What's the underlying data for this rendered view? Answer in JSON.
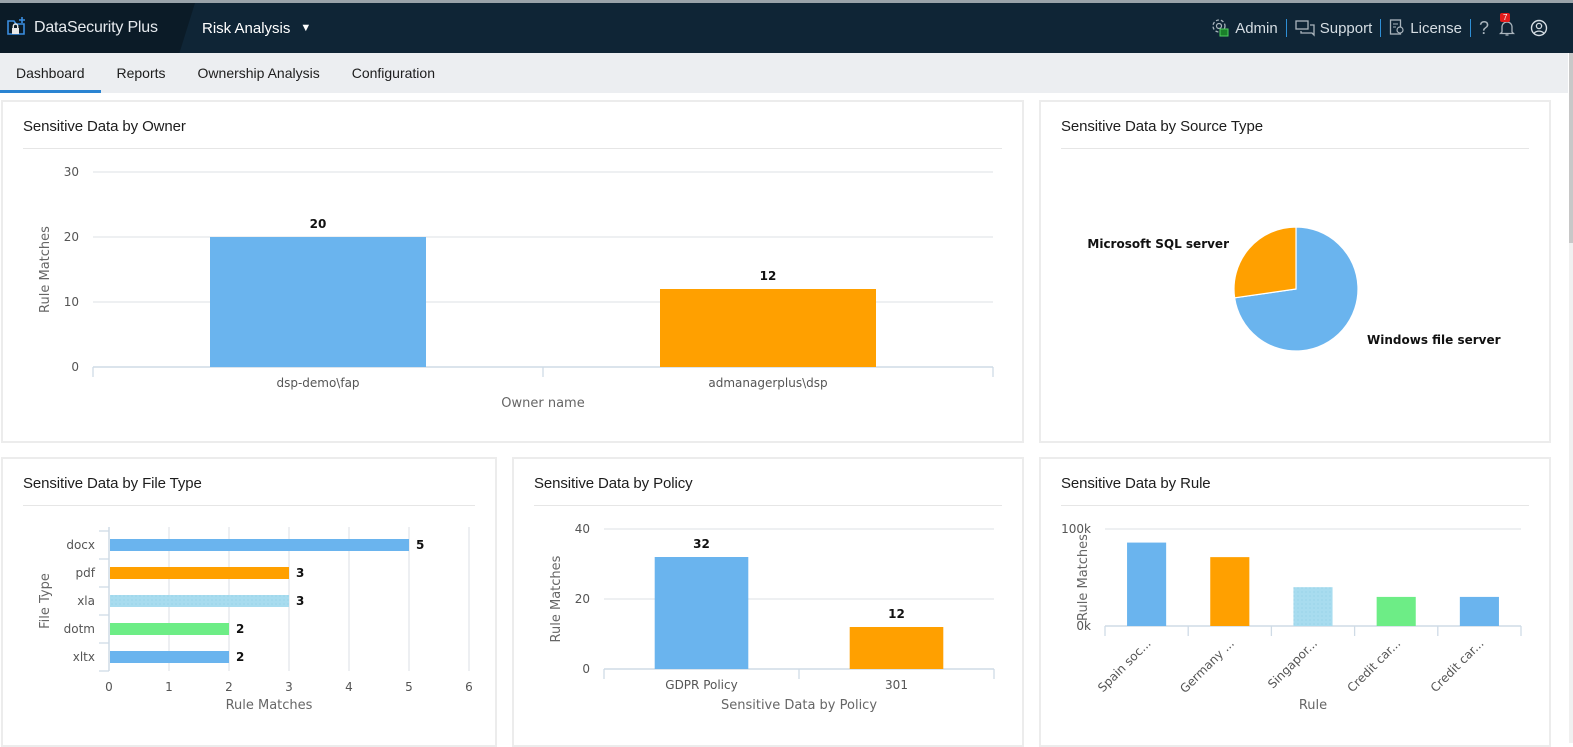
{
  "header": {
    "brand": "DataSecurity Plus",
    "module": "Risk Analysis",
    "links": [
      {
        "label": "Admin",
        "icon": "admin-gear-icon"
      },
      {
        "label": "Support",
        "icon": "chat-icon"
      },
      {
        "label": "License",
        "icon": "license-icon"
      }
    ],
    "help_icon": "?",
    "notification_count": "7"
  },
  "tabs": [
    {
      "label": "Dashboard",
      "active": true
    },
    {
      "label": "Reports",
      "active": false
    },
    {
      "label": "Ownership Analysis",
      "active": false
    },
    {
      "label": "Configuration",
      "active": false
    }
  ],
  "colors": {
    "blue": "#6ab4ee",
    "orange": "#ffa000",
    "lightblue": "#a8dcef",
    "green": "#6ded86"
  },
  "panels": {
    "owner": {
      "title": "Sensitive Data by Owner"
    },
    "source": {
      "title": "Sensitive Data by Source Type"
    },
    "filetype": {
      "title": "Sensitive Data by File Type"
    },
    "policy": {
      "title": "Sensitive Data by Policy"
    },
    "rule": {
      "title": "Sensitive Data by Rule"
    }
  },
  "chart_data": [
    {
      "id": "owner",
      "type": "bar",
      "title": "Sensitive Data by Owner",
      "categories": [
        "dsp-demo\\fap",
        "admanagerplus\\dsp"
      ],
      "values": [
        20,
        12
      ],
      "colors": [
        "#6ab4ee",
        "#ffa000"
      ],
      "xlabel": "Owner name",
      "ylabel": "Rule Matches",
      "ylim": [
        0,
        30
      ],
      "yticks": [
        "0",
        "10",
        "20",
        "30"
      ],
      "grid": true
    },
    {
      "id": "source",
      "type": "pie",
      "title": "Sensitive Data by Source Type",
      "labels": [
        "Windows file server",
        "Microsoft SQL server"
      ],
      "values": [
        32,
        12
      ],
      "colors": [
        "#6ab4ee",
        "#ffa000"
      ]
    },
    {
      "id": "filetype",
      "type": "bar",
      "orientation": "horizontal",
      "title": "Sensitive Data by File Type",
      "categories": [
        "docx",
        "pdf",
        "xla",
        "dotm",
        "xltx"
      ],
      "values": [
        5,
        3,
        3,
        2,
        2
      ],
      "colors": [
        "#6ab4ee",
        "#ffa000",
        "#a8dcef",
        "#6ded86",
        "#6ab4ee"
      ],
      "xlabel": "Rule Matches",
      "ylabel": "File Type",
      "xlim": [
        0,
        6
      ],
      "xticks": [
        "0",
        "1",
        "2",
        "3",
        "4",
        "5",
        "6"
      ],
      "grid": true
    },
    {
      "id": "policy",
      "type": "bar",
      "title": "Sensitive Data by Policy",
      "categories": [
        "GDPR Policy",
        "301"
      ],
      "values": [
        32,
        12
      ],
      "colors": [
        "#6ab4ee",
        "#ffa000"
      ],
      "xlabel": "Sensitive Data by Policy",
      "ylabel": "Rule Matches",
      "ylim": [
        0,
        40
      ],
      "yticks": [
        "0",
        "20",
        "40"
      ],
      "grid": true
    },
    {
      "id": "rule",
      "type": "bar",
      "title": "Sensitive Data by Rule",
      "categories": [
        "Spain soc...",
        "Germany ...",
        "Singapor...",
        "Credit car...",
        "Credit car..."
      ],
      "values": [
        86000,
        71000,
        40000,
        30000,
        30000
      ],
      "colors": [
        "#6ab4ee",
        "#ffa000",
        "#a8dcef",
        "#6ded86",
        "#6ab4ee"
      ],
      "xlabel": "Rule",
      "ylabel": "Rule Matches",
      "ylim": [
        0,
        100000
      ],
      "yticks": [
        "0k",
        "100k"
      ],
      "grid": true
    }
  ]
}
